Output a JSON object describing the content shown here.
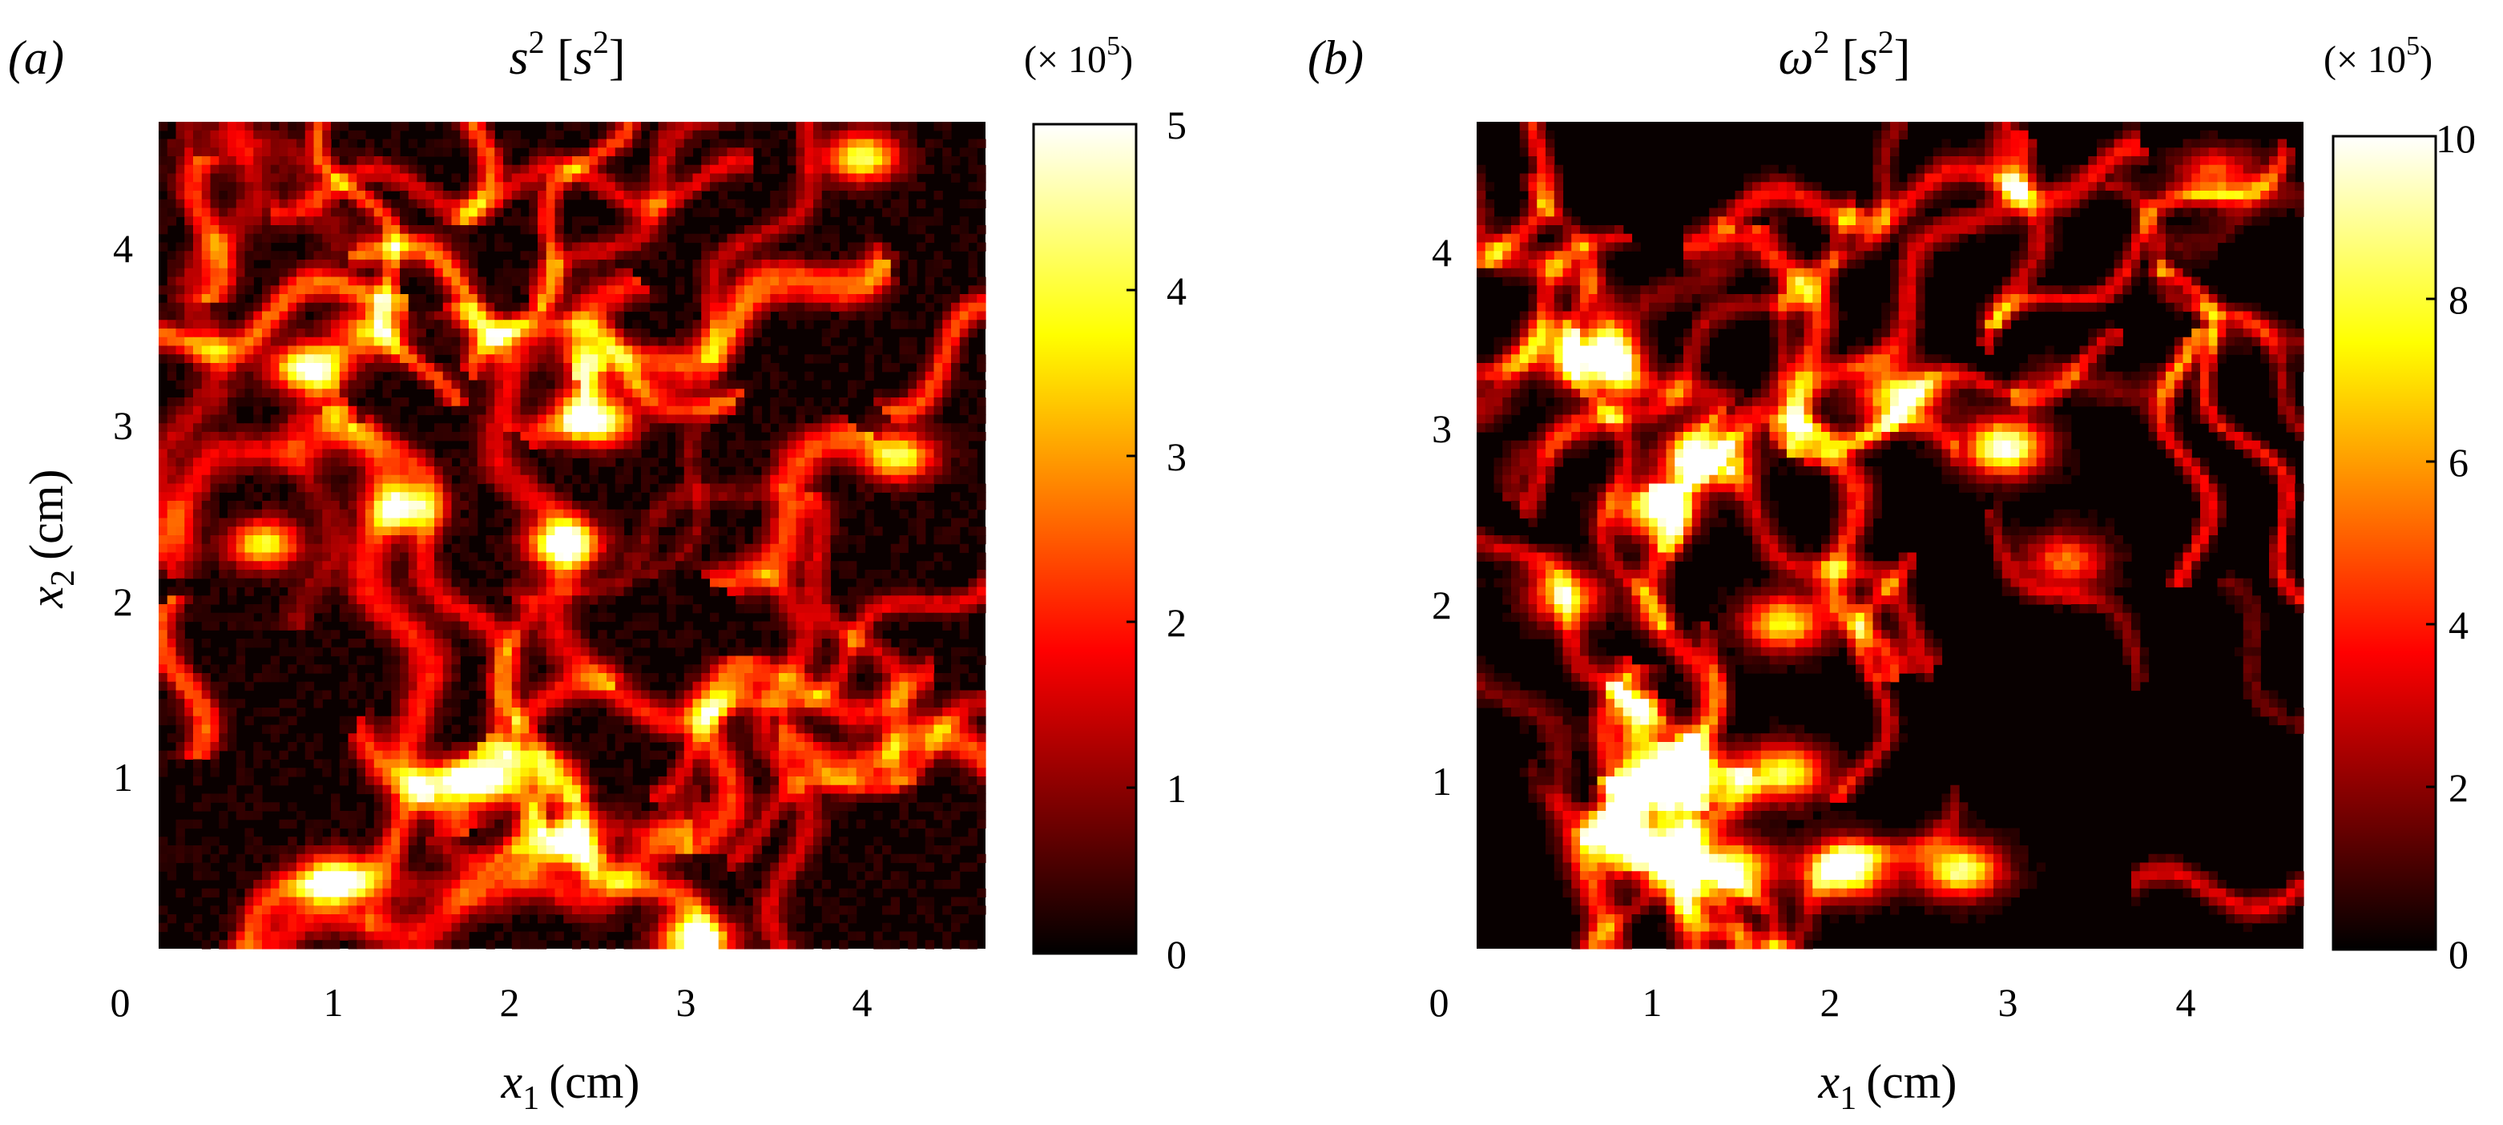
{
  "figure": {
    "panels": [
      {
        "id": "a",
        "letter": "(a)",
        "title": "s2 [s2]",
        "title_parts": {
          "base": "s",
          "sup": "2",
          "unit_base": "s",
          "unit_sup": "2"
        },
        "multiplier_text": "(× 10",
        "multiplier_exp": "5",
        "colorbar_ticks": [
          "0",
          "1",
          "2",
          "3",
          "4",
          "5"
        ]
      },
      {
        "id": "b",
        "letter": "(b)",
        "title": "ω2 [s2]",
        "title_parts": {
          "base": "ω",
          "sup": "2",
          "unit_base": "s",
          "unit_sup": "2"
        },
        "multiplier_text": "(× 10",
        "multiplier_exp": "5",
        "colorbar_ticks": [
          "0",
          "2",
          "4",
          "6",
          "8",
          "10"
        ]
      }
    ],
    "x_ticks": [
      "0",
      "1",
      "2",
      "3",
      "4"
    ],
    "y_ticks": [
      "1",
      "2",
      "3",
      "4"
    ],
    "xlabel": {
      "var": "x",
      "sub": "1",
      "unit": "(cm)"
    },
    "ylabel": {
      "var": "x",
      "sub": "2",
      "unit": "(cm)"
    }
  },
  "chart_data": [
    {
      "type": "heatmap",
      "panel": "a",
      "title": "s2 [s2]",
      "xlabel": "x1 (cm)",
      "ylabel": "x2 (cm)",
      "xlim": [
        0,
        4.7
      ],
      "ylim": [
        0,
        4.7
      ],
      "colormap": "hot",
      "color_range": [
        0,
        500000
      ],
      "colorbar_label": "(× 10^5)",
      "colorbar_ticks": [
        0,
        1,
        2,
        3,
        4,
        5
      ],
      "hotspots": [
        {
          "x": 0.85,
          "y": 3.3,
          "value": 500000
        },
        {
          "x": 1.4,
          "y": 2.5,
          "value": 420000
        },
        {
          "x": 2.5,
          "y": 3.0,
          "value": 480000
        },
        {
          "x": 2.3,
          "y": 2.3,
          "value": 500000
        },
        {
          "x": 0.6,
          "y": 2.3,
          "value": 380000
        },
        {
          "x": 1.8,
          "y": 0.95,
          "value": 500000
        },
        {
          "x": 1.0,
          "y": 0.4,
          "value": 450000
        },
        {
          "x": 2.3,
          "y": 0.6,
          "value": 350000
        },
        {
          "x": 3.05,
          "y": 0.05,
          "value": 500000
        },
        {
          "x": 4.0,
          "y": 4.5,
          "value": 420000
        },
        {
          "x": 4.2,
          "y": 2.8,
          "value": 420000
        },
        {
          "x": 1.2,
          "y": 3.5,
          "value": 330000
        }
      ]
    },
    {
      "type": "heatmap",
      "panel": "b",
      "title": "ω2 [s2]",
      "xlabel": "x1 (cm)",
      "ylabel": "",
      "xlim": [
        0,
        4.7
      ],
      "ylim": [
        0,
        4.7
      ],
      "colormap": "hot",
      "color_range": [
        0,
        1000000
      ],
      "colorbar_label": "(× 10^5)",
      "colorbar_ticks": [
        0,
        2,
        4,
        6,
        8,
        10
      ],
      "hotspots": [
        {
          "x": 0.65,
          "y": 3.35,
          "value": 1000000
        },
        {
          "x": 1.3,
          "y": 2.8,
          "value": 950000
        },
        {
          "x": 1.0,
          "y": 2.5,
          "value": 800000
        },
        {
          "x": 3.0,
          "y": 2.85,
          "value": 1000000
        },
        {
          "x": 2.4,
          "y": 3.15,
          "value": 850000
        },
        {
          "x": 1.2,
          "y": 1.0,
          "value": 900000
        },
        {
          "x": 1.75,
          "y": 1.0,
          "value": 850000
        },
        {
          "x": 1.45,
          "y": 0.45,
          "value": 950000
        },
        {
          "x": 2.1,
          "y": 0.45,
          "value": 1000000
        },
        {
          "x": 2.75,
          "y": 0.45,
          "value": 900000
        },
        {
          "x": 1.75,
          "y": 1.85,
          "value": 800000
        },
        {
          "x": 0.5,
          "y": 2.0,
          "value": 650000
        },
        {
          "x": 0.95,
          "y": 0.55,
          "value": 750000
        },
        {
          "x": 3.35,
          "y": 2.2,
          "value": 600000
        },
        {
          "x": 4.2,
          "y": 4.4,
          "value": 550000
        }
      ]
    }
  ]
}
